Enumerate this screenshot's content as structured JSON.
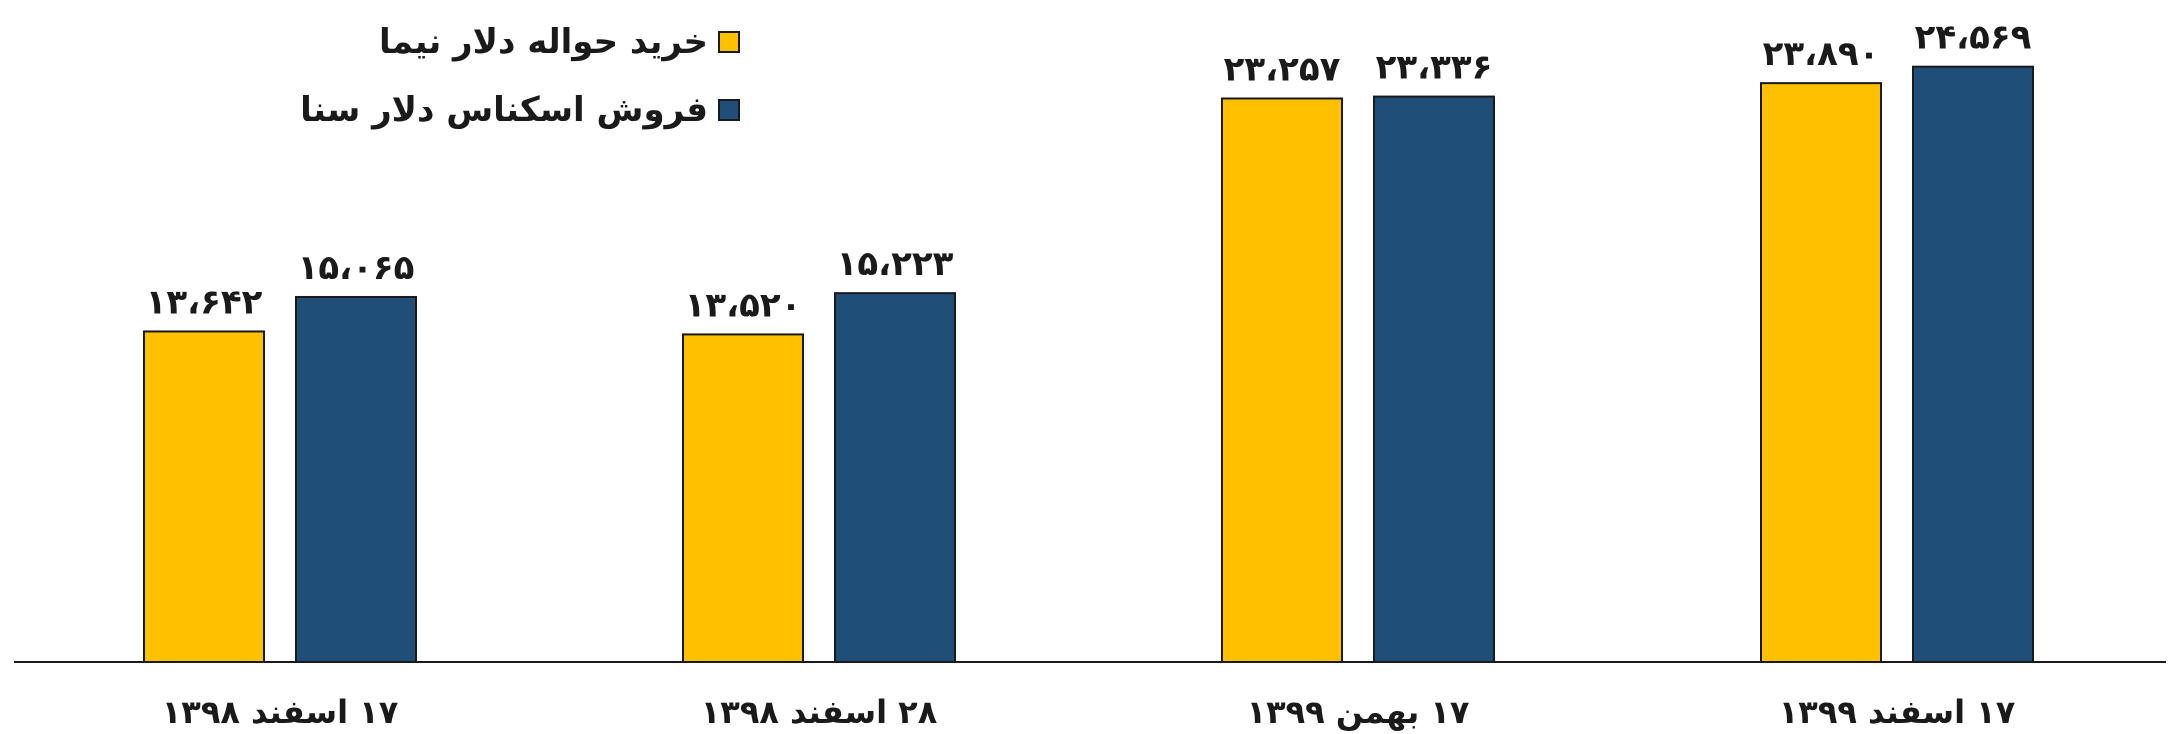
{
  "chart_data": {
    "type": "bar",
    "title": "",
    "xlabel": "",
    "ylabel": "",
    "ylim": [
      0,
      25500
    ],
    "grid": false,
    "legend_position": "top-left",
    "categories": [
      "۱۷ اسفند ۱۳۹۸",
      "۲۸ اسفند ۱۳۹۸",
      "۱۷ بهمن ۱۳۹۹",
      "۱۷ اسفند ۱۳۹۹"
    ],
    "series": [
      {
        "name": "خرید حواله دلار نیما",
        "color": "#FFC000",
        "values": [
          13642,
          13520,
          23257,
          23890
        ],
        "labels": [
          "۱۳،۶۴۲",
          "۱۳،۵۲۰",
          "۲۳،۲۵۷",
          "۲۳،۸۹۰"
        ]
      },
      {
        "name": "فروش اسکناس دلار سنا",
        "color": "#1F4E79",
        "values": [
          15065,
          15223,
          23336,
          24569
        ],
        "labels": [
          "۱۵،۰۶۵",
          "۱۵،۲۲۳",
          "۲۳،۳۳۶",
          "۲۴،۵۶۹"
        ]
      }
    ]
  }
}
